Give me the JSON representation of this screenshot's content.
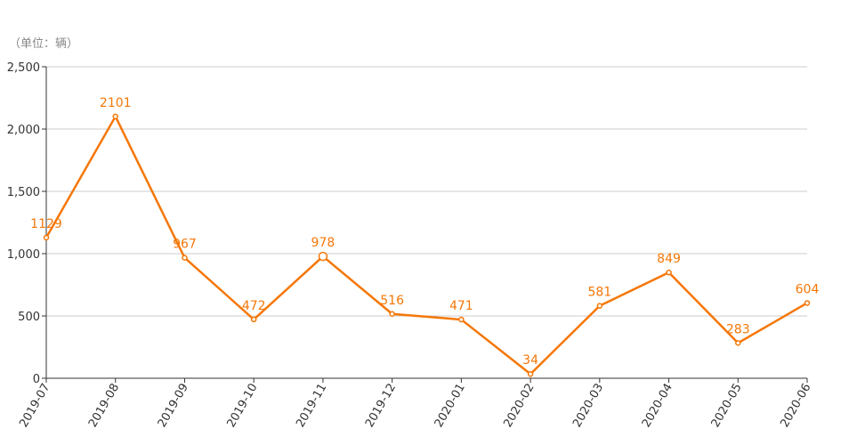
{
  "unit_label": "（单位：辆）",
  "colors": {
    "line": "#f57707",
    "grid": "#cccccc",
    "axis": "#333333"
  },
  "chart_data": {
    "type": "line",
    "categories": [
      "2019-07",
      "2019-08",
      "2019-09",
      "2019-10",
      "2019-11",
      "2019-12",
      "2020-01",
      "2020-02",
      "2020-03",
      "2020-04",
      "2020-05",
      "2020-06"
    ],
    "series": [
      {
        "values": [
          1129,
          2101,
          967,
          472,
          978,
          516,
          471,
          34,
          581,
          849,
          283,
          604
        ]
      }
    ],
    "y_ticks": [
      "0",
      "500",
      "1,000",
      "1,500",
      "2,000",
      "2,500"
    ],
    "ylim": [
      0,
      2500
    ],
    "grid": true,
    "data_labels": true
  }
}
